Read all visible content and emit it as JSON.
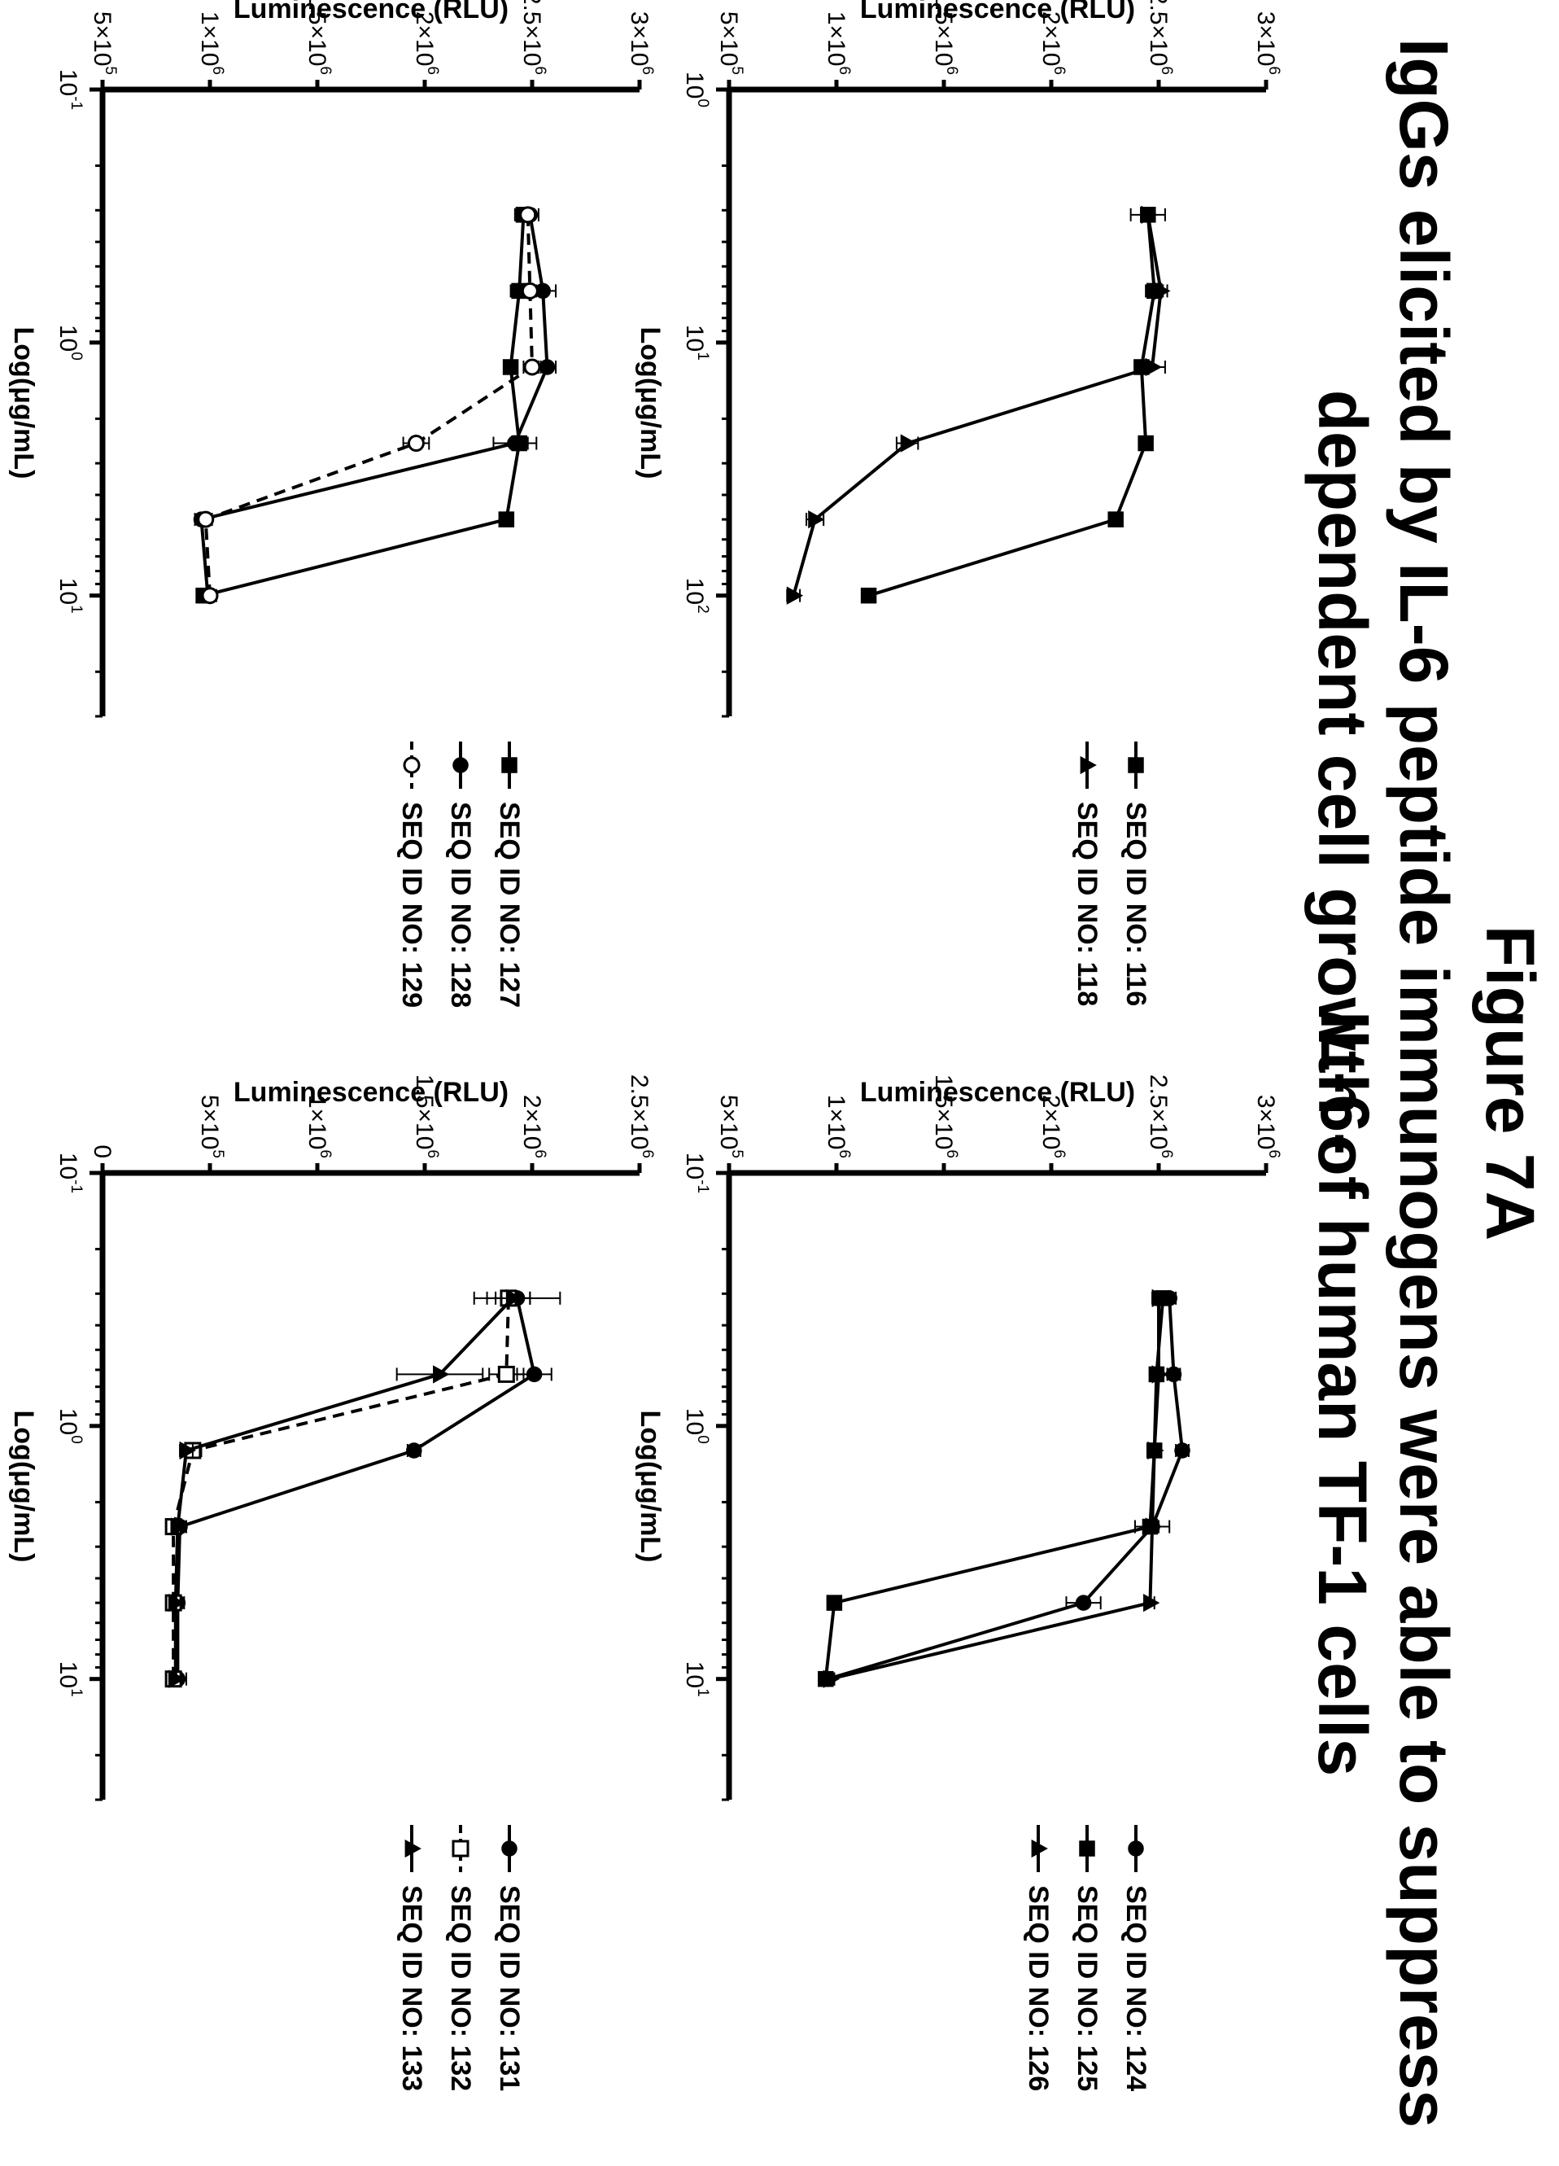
{
  "figure": {
    "label": "Figure 7A",
    "title_line1": "IgGs elicited by IL-6 peptide immunogens were able to suppress IL-6-",
    "title_line2": "dependent cell growth of human TF-1 cells"
  },
  "chart_data": [
    {
      "type": "line",
      "xlabel": "Log(μg/mL)",
      "ylabel": "Luminescence (RLU)",
      "xscale": "log",
      "xlim": [
        1,
        300
      ],
      "ylim": [
        500000,
        3000000
      ],
      "x_ticks": [
        {
          "value": 1,
          "base": "10",
          "exp": "0"
        },
        {
          "value": 10,
          "base": "10",
          "exp": "1"
        },
        {
          "value": 100,
          "base": "10",
          "exp": "2"
        }
      ],
      "y_ticks": [
        {
          "value": 500000,
          "label": "5×10",
          "exp": "5"
        },
        {
          "value": 1000000,
          "label": "1×10",
          "exp": "6"
        },
        {
          "value": 1500000,
          "label": "1.5×10",
          "exp": "6"
        },
        {
          "value": 2000000,
          "label": "2×10",
          "exp": "6"
        },
        {
          "value": 2500000,
          "label": "2.5×10",
          "exp": "6"
        },
        {
          "value": 3000000,
          "label": "3×10",
          "exp": "6"
        }
      ],
      "legend": "right",
      "series": [
        {
          "name": "SEQ ID NO: 116",
          "marker": "square-filled",
          "dash": false,
          "x": [
            3.125,
            6.25,
            12.5,
            25,
            50,
            100
          ],
          "y": [
            2450000,
            2480000,
            2420000,
            2440000,
            2300000,
            1150000
          ],
          "err": [
            80000,
            40000,
            30000,
            30000,
            20000,
            30000
          ]
        },
        {
          "name": "SEQ ID NO: 118",
          "marker": "triangle-filled",
          "dash": false,
          "x": [
            3.125,
            6.25,
            12.5,
            25,
            50,
            100
          ],
          "y": [
            2450000,
            2510000,
            2470000,
            1330000,
            900000,
            800000
          ],
          "err": [
            30000,
            30000,
            60000,
            50000,
            40000,
            30000
          ]
        }
      ]
    },
    {
      "type": "line",
      "xlabel": "Log(μg/mL)",
      "ylabel": "Luminescence (RLU)",
      "xscale": "log",
      "xlim": [
        0.1,
        30
      ],
      "ylim": [
        500000,
        3000000
      ],
      "x_ticks": [
        {
          "value": 0.1,
          "base": "10",
          "exp": "-1"
        },
        {
          "value": 1,
          "base": "10",
          "exp": "0"
        },
        {
          "value": 10,
          "base": "10",
          "exp": "1"
        }
      ],
      "y_ticks": [
        {
          "value": 500000,
          "label": "5×10",
          "exp": "5"
        },
        {
          "value": 1000000,
          "label": "1×10",
          "exp": "6"
        },
        {
          "value": 1500000,
          "label": "1.5×10",
          "exp": "6"
        },
        {
          "value": 2000000,
          "label": "2×10",
          "exp": "6"
        },
        {
          "value": 2500000,
          "label": "2.5×10",
          "exp": "6"
        },
        {
          "value": 3000000,
          "label": "3×10",
          "exp": "6"
        }
      ],
      "legend": "right",
      "series": [
        {
          "name": "SEQ ID NO: 124",
          "marker": "circle-filled",
          "dash": false,
          "x": [
            0.3125,
            0.625,
            1.25,
            2.5,
            5,
            10
          ],
          "y": [
            2550000,
            2570000,
            2610000,
            2470000,
            2150000,
            960000
          ],
          "err": [
            30000,
            30000,
            30000,
            30000,
            80000,
            30000
          ]
        },
        {
          "name": "SEQ ID NO: 125",
          "marker": "square-filled",
          "dash": false,
          "x": [
            0.3125,
            0.625,
            1.25,
            2.5,
            5,
            10
          ],
          "y": [
            2520000,
            2490000,
            2480000,
            2460000,
            990000,
            950000
          ],
          "err": [
            20000,
            20000,
            20000,
            20000,
            20000,
            20000
          ]
        },
        {
          "name": "SEQ ID NO: 126",
          "marker": "triangle-filled",
          "dash": false,
          "x": [
            0.3125,
            0.625,
            1.25,
            2.5,
            5,
            10
          ],
          "y": [
            2500000,
            2500000,
            2480000,
            2470000,
            2460000,
            970000
          ],
          "err": [
            30000,
            20000,
            20000,
            80000,
            20000,
            20000
          ]
        }
      ]
    },
    {
      "type": "line",
      "xlabel": "Log(μg/mL)",
      "ylabel": "Luminescence (RLU)",
      "xscale": "log",
      "xlim": [
        0.1,
        30
      ],
      "ylim": [
        500000,
        3000000
      ],
      "x_ticks": [
        {
          "value": 0.1,
          "base": "10",
          "exp": "-1"
        },
        {
          "value": 1,
          "base": "10",
          "exp": "0"
        },
        {
          "value": 10,
          "base": "10",
          "exp": "1"
        }
      ],
      "y_ticks": [
        {
          "value": 500000,
          "label": "5×10",
          "exp": "5"
        },
        {
          "value": 1000000,
          "label": "1×10",
          "exp": "6"
        },
        {
          "value": 1500000,
          "label": "1.5×10",
          "exp": "6"
        },
        {
          "value": 2000000,
          "label": "2×10",
          "exp": "6"
        },
        {
          "value": 2500000,
          "label": "2.5×10",
          "exp": "6"
        },
        {
          "value": 3000000,
          "label": "3×10",
          "exp": "6"
        }
      ],
      "legend": "right",
      "series": [
        {
          "name": "SEQ ID NO: 127",
          "marker": "square-filled",
          "dash": false,
          "x": [
            0.3125,
            0.625,
            1.25,
            2.5,
            5,
            10
          ],
          "y": [
            2460000,
            2440000,
            2400000,
            2440000,
            2380000,
            970000
          ],
          "err": [
            40000,
            40000,
            30000,
            40000,
            20000,
            20000
          ]
        },
        {
          "name": "SEQ ID NO: 128",
          "marker": "circle-filled",
          "dash": false,
          "x": [
            0.3125,
            0.625,
            1.25,
            2.5,
            5,
            10
          ],
          "y": [
            2490000,
            2550000,
            2570000,
            2420000,
            960000,
            990000
          ],
          "err": [
            40000,
            60000,
            40000,
            100000,
            30000,
            20000
          ]
        },
        {
          "name": "SEQ ID NO: 129",
          "marker": "circle-open",
          "dash": true,
          "x": [
            0.3125,
            0.625,
            1.25,
            2.5,
            5,
            10
          ],
          "y": [
            2480000,
            2490000,
            2500000,
            1960000,
            980000,
            1000000
          ],
          "err": [
            30000,
            30000,
            40000,
            60000,
            30000,
            30000
          ]
        }
      ]
    },
    {
      "type": "line",
      "xlabel": "Log(μg/mL)",
      "ylabel": "Luminescence (RLU)",
      "xscale": "log",
      "xlim": [
        0.1,
        30
      ],
      "ylim": [
        0,
        2500000
      ],
      "x_ticks": [
        {
          "value": 0.1,
          "base": "10",
          "exp": "-1"
        },
        {
          "value": 1,
          "base": "10",
          "exp": "0"
        },
        {
          "value": 10,
          "base": "10",
          "exp": "1"
        }
      ],
      "y_ticks": [
        {
          "value": 0,
          "label": "0",
          "exp": ""
        },
        {
          "value": 500000,
          "label": "5×10",
          "exp": "5"
        },
        {
          "value": 1000000,
          "label": "1×10",
          "exp": "6"
        },
        {
          "value": 1500000,
          "label": "1.5×10",
          "exp": "6"
        },
        {
          "value": 2000000,
          "label": "2×10",
          "exp": "6"
        },
        {
          "value": 2500000,
          "label": "2.5×10",
          "exp": "6"
        }
      ],
      "legend": "right",
      "series": [
        {
          "name": "SEQ ID NO: 131",
          "marker": "circle-filled",
          "dash": false,
          "x": [
            0.3125,
            0.625,
            1.25,
            2.5,
            5,
            10
          ],
          "y": [
            1930000,
            2010000,
            1450000,
            360000,
            350000,
            350000
          ],
          "err": [
            200000,
            80000,
            30000,
            30000,
            30000,
            40000
          ]
        },
        {
          "name": "SEQ ID NO: 132",
          "marker": "square-open",
          "dash": true,
          "x": [
            0.3125,
            0.625,
            1.25,
            2.5,
            5,
            10
          ],
          "y": [
            1890000,
            1880000,
            420000,
            330000,
            330000,
            330000
          ],
          "err": [
            100000,
            80000,
            40000,
            30000,
            30000,
            30000
          ]
        },
        {
          "name": "SEQ ID NO: 133",
          "marker": "triangle-filled",
          "dash": false,
          "x": [
            0.3125,
            0.625,
            1.25,
            2.5,
            5,
            10
          ],
          "y": [
            1910000,
            1570000,
            390000,
            350000,
            340000,
            340000
          ],
          "err": [
            80000,
            200000,
            30000,
            30000,
            30000,
            30000
          ]
        }
      ]
    }
  ]
}
